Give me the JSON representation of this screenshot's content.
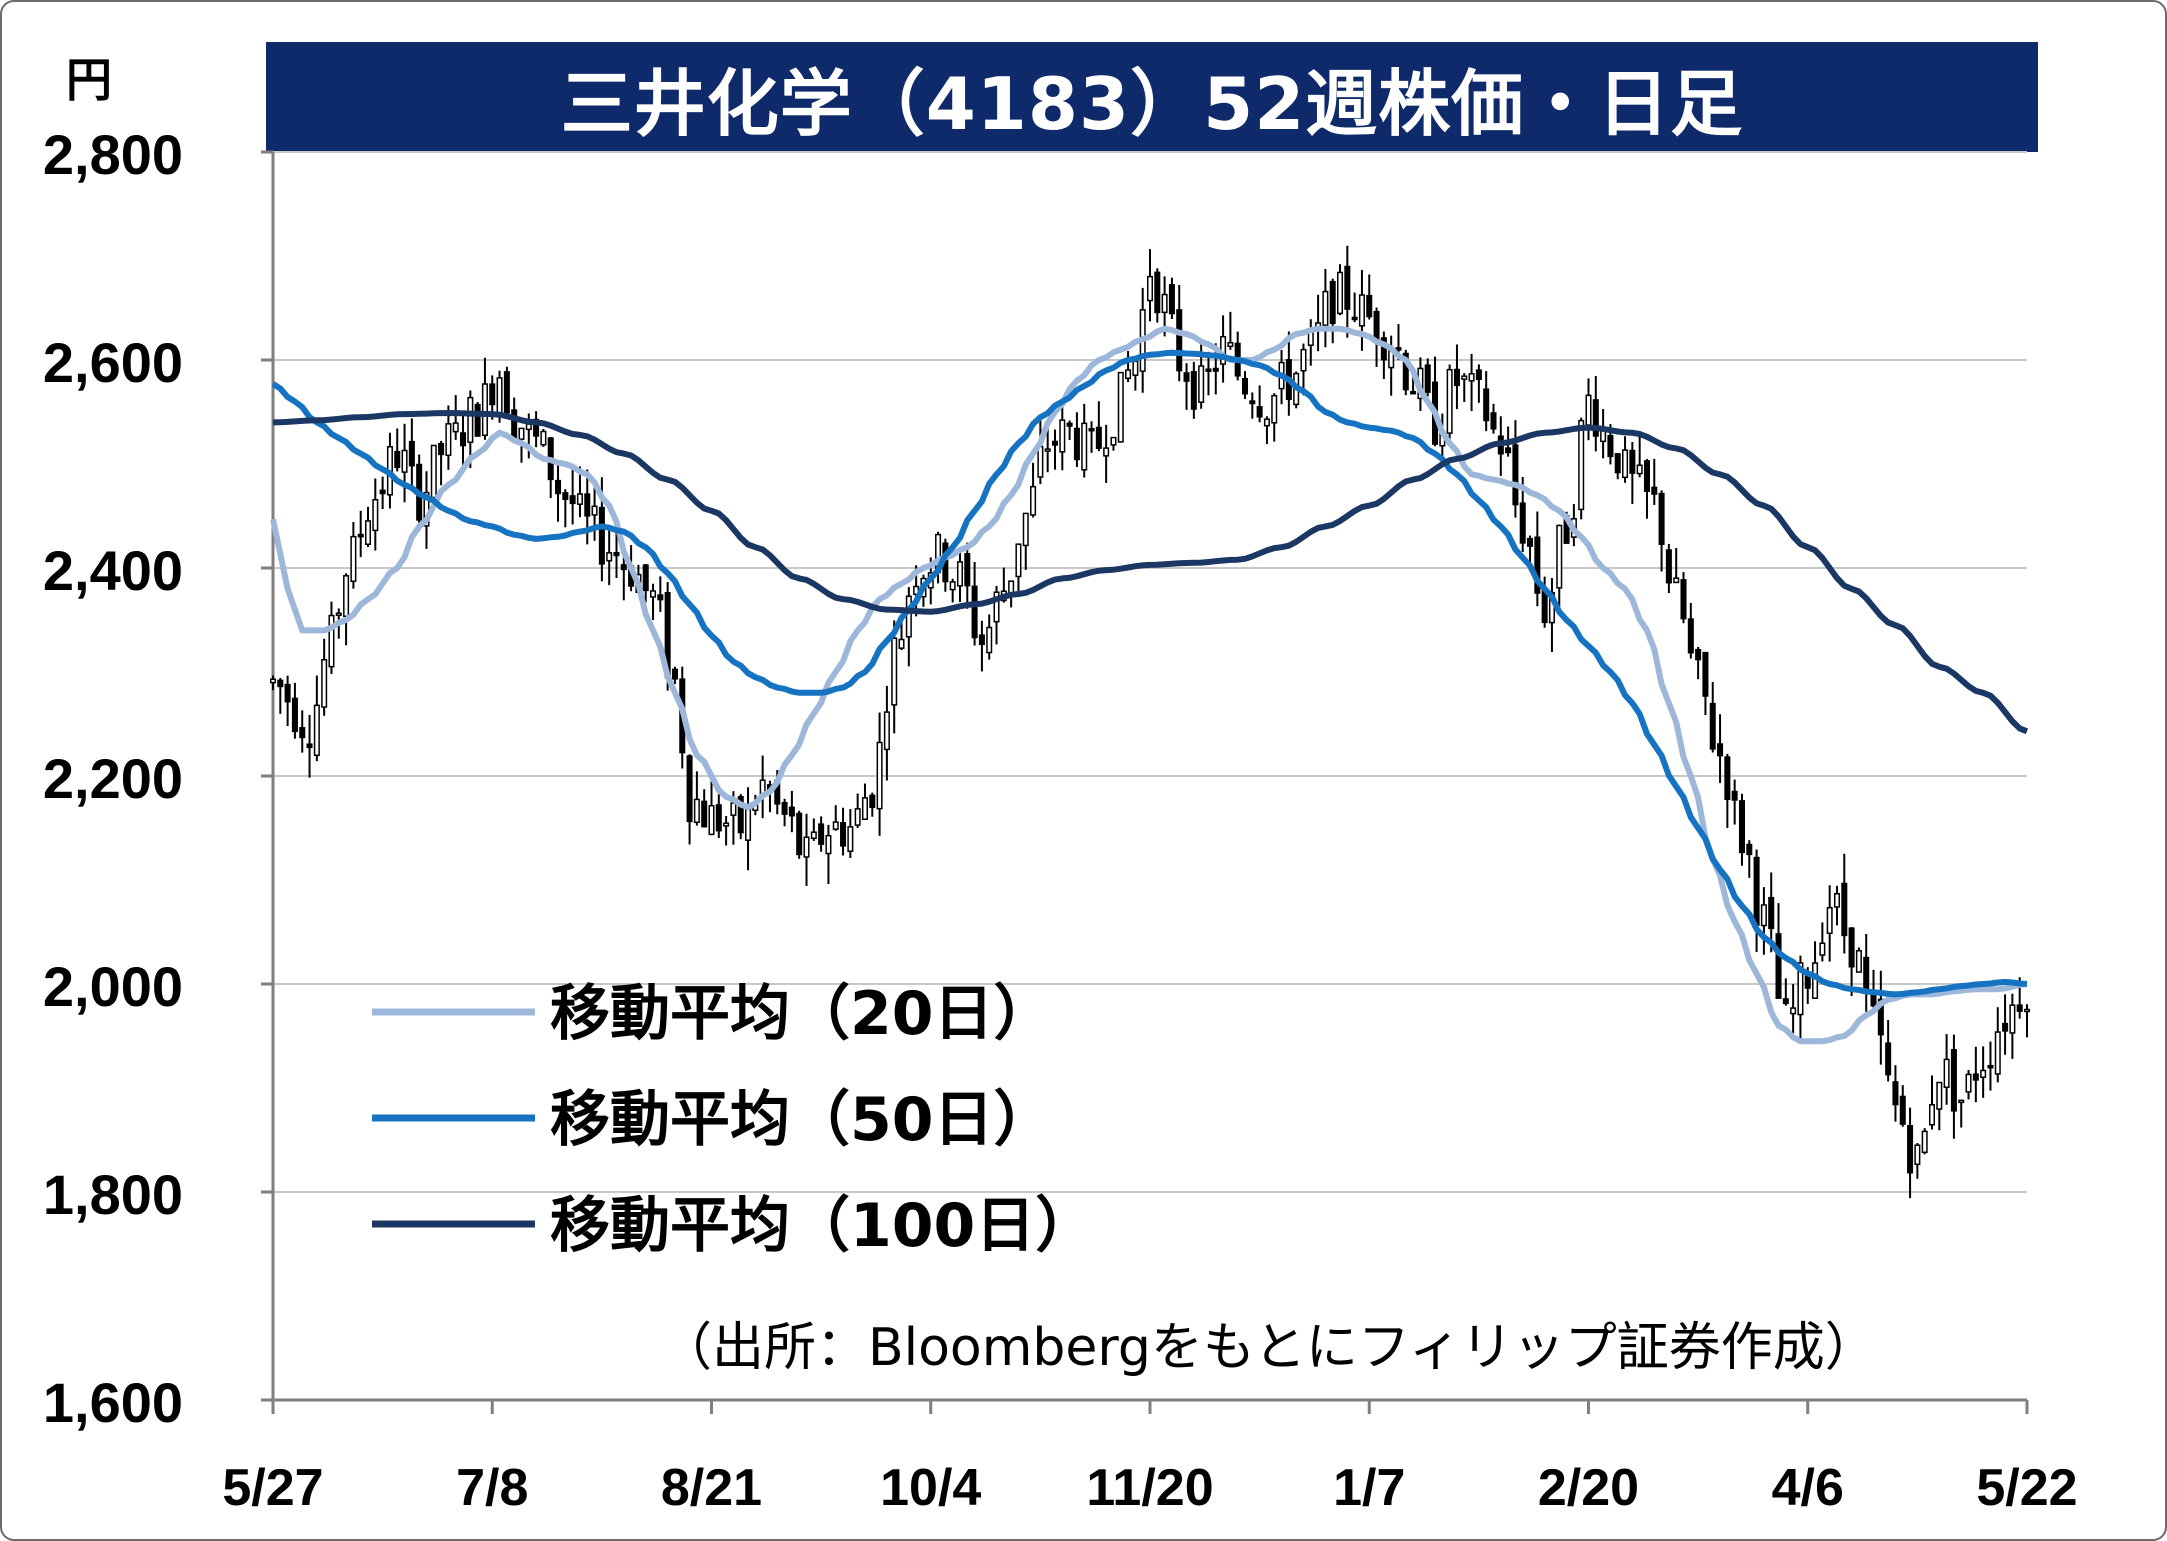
{
  "chart_data": {
    "type": "candlestick",
    "title": "三井化学（4183）52週株価・日足",
    "unit": "円",
    "source": "（出所：Bloombergをもとにフィリップ証券作成）",
    "ylim": [
      1600,
      2800
    ],
    "yticks": [
      "1,600",
      "1,800",
      "2,000",
      "2,200",
      "2,400",
      "2,600",
      "2,800"
    ],
    "ytick_values": [
      1600,
      1800,
      2000,
      2200,
      2400,
      2600,
      2800
    ],
    "xticks": [
      "5/27",
      "7/8",
      "8/21",
      "10/4",
      "11/20",
      "1/7",
      "2/20",
      "4/6",
      "5/22"
    ],
    "xtick_index": [
      0,
      30,
      60,
      90,
      120,
      150,
      180,
      210,
      240
    ],
    "n_days": 241,
    "grid": true,
    "legend_placement": "bottom-left",
    "colors": {
      "ma20": "#9db7da",
      "ma50": "#1673c2",
      "ma100": "#1b3763",
      "grid": "#c8c8c8",
      "axis": "#7f7f7f",
      "title_bg": "#0e2a6b"
    },
    "price_anchors": [
      [
        0,
        2290
      ],
      [
        5,
        2250
      ],
      [
        8,
        2330
      ],
      [
        10,
        2400
      ],
      [
        14,
        2470
      ],
      [
        17,
        2510
      ],
      [
        20,
        2470
      ],
      [
        24,
        2520
      ],
      [
        28,
        2550
      ],
      [
        31,
        2590
      ],
      [
        33,
        2545
      ],
      [
        36,
        2520
      ],
      [
        40,
        2470
      ],
      [
        43,
        2440
      ],
      [
        46,
        2420
      ],
      [
        49,
        2400
      ],
      [
        52,
        2370
      ],
      [
        55,
        2290
      ],
      [
        57,
        2180
      ],
      [
        60,
        2160
      ],
      [
        64,
        2150
      ],
      [
        67,
        2190
      ],
      [
        70,
        2160
      ],
      [
        73,
        2120
      ],
      [
        76,
        2150
      ],
      [
        79,
        2150
      ],
      [
        82,
        2190
      ],
      [
        85,
        2320
      ],
      [
        88,
        2400
      ],
      [
        91,
        2410
      ],
      [
        94,
        2390
      ],
      [
        97,
        2330
      ],
      [
        100,
        2380
      ],
      [
        103,
        2450
      ],
      [
        106,
        2520
      ],
      [
        109,
        2530
      ],
      [
        112,
        2510
      ],
      [
        115,
        2550
      ],
      [
        118,
        2600
      ],
      [
        120,
        2690
      ],
      [
        122,
        2650
      ],
      [
        124,
        2600
      ],
      [
        127,
        2570
      ],
      [
        130,
        2610
      ],
      [
        133,
        2580
      ],
      [
        136,
        2560
      ],
      [
        139,
        2580
      ],
      [
        142,
        2610
      ],
      [
        145,
        2660
      ],
      [
        147,
        2660
      ],
      [
        150,
        2640
      ],
      [
        153,
        2620
      ],
      [
        156,
        2580
      ],
      [
        159,
        2540
      ],
      [
        162,
        2580
      ],
      [
        165,
        2560
      ],
      [
        168,
        2520
      ],
      [
        171,
        2440
      ],
      [
        174,
        2360
      ],
      [
        177,
        2440
      ],
      [
        180,
        2560
      ],
      [
        183,
        2520
      ],
      [
        186,
        2480
      ],
      [
        189,
        2460
      ],
      [
        192,
        2370
      ],
      [
        195,
        2290
      ],
      [
        198,
        2220
      ],
      [
        201,
        2140
      ],
      [
        204,
        2060
      ],
      [
        207,
        1960
      ],
      [
        210,
        2010
      ],
      [
        213,
        2080
      ],
      [
        216,
        2040
      ],
      [
        219,
        1960
      ],
      [
        222,
        1880
      ],
      [
        225,
        1830
      ],
      [
        228,
        1920
      ],
      [
        231,
        1890
      ],
      [
        234,
        1930
      ],
      [
        237,
        1970
      ],
      [
        240,
        2000
      ]
    ],
    "ma_anchors": {
      "ma20": [
        [
          0,
          2447
        ],
        [
          2,
          2380
        ],
        [
          4,
          2340
        ],
        [
          7,
          2340
        ],
        [
          10,
          2350
        ],
        [
          13,
          2370
        ],
        [
          17,
          2400
        ],
        [
          20,
          2440
        ],
        [
          24,
          2480
        ],
        [
          28,
          2510
        ],
        [
          31,
          2530
        ],
        [
          34,
          2520
        ],
        [
          37,
          2505
        ],
        [
          40,
          2500
        ],
        [
          43,
          2490
        ],
        [
          46,
          2460
        ],
        [
          49,
          2400
        ],
        [
          52,
          2340
        ],
        [
          55,
          2280
        ],
        [
          58,
          2220
        ],
        [
          62,
          2180
        ],
        [
          65,
          2170
        ],
        [
          68,
          2185
        ],
        [
          71,
          2220
        ],
        [
          74,
          2260
        ],
        [
          77,
          2300
        ],
        [
          80,
          2340
        ],
        [
          83,
          2370
        ],
        [
          86,
          2385
        ],
        [
          89,
          2400
        ],
        [
          92,
          2410
        ],
        [
          95,
          2420
        ],
        [
          98,
          2440
        ],
        [
          101,
          2470
        ],
        [
          104,
          2510
        ],
        [
          107,
          2550
        ],
        [
          110,
          2580
        ],
        [
          113,
          2600
        ],
        [
          116,
          2610
        ],
        [
          119,
          2620
        ],
        [
          122,
          2630
        ],
        [
          125,
          2625
        ],
        [
          128,
          2615
        ],
        [
          131,
          2600
        ],
        [
          134,
          2600
        ],
        [
          137,
          2610
        ],
        [
          140,
          2625
        ],
        [
          143,
          2630
        ],
        [
          146,
          2630
        ],
        [
          149,
          2625
        ],
        [
          152,
          2615
        ],
        [
          155,
          2600
        ],
        [
          158,
          2560
        ],
        [
          161,
          2520
        ],
        [
          164,
          2490
        ],
        [
          167,
          2485
        ],
        [
          170,
          2480
        ],
        [
          173,
          2470
        ],
        [
          176,
          2455
        ],
        [
          179,
          2430
        ],
        [
          182,
          2400
        ],
        [
          185,
          2380
        ],
        [
          188,
          2340
        ],
        [
          191,
          2270
        ],
        [
          194,
          2200
        ],
        [
          197,
          2120
        ],
        [
          200,
          2060
        ],
        [
          203,
          2010
        ],
        [
          206,
          1960
        ],
        [
          209,
          1945
        ],
        [
          212,
          1945
        ],
        [
          215,
          1950
        ],
        [
          218,
          1970
        ],
        [
          221,
          1985
        ],
        [
          224,
          1990
        ],
        [
          227,
          1990
        ],
        [
          230,
          1993
        ],
        [
          233,
          1995
        ],
        [
          236,
          1995
        ],
        [
          240,
          2000
        ]
      ],
      "ma50": [
        [
          0,
          2577
        ],
        [
          3,
          2560
        ],
        [
          6,
          2540
        ],
        [
          9,
          2525
        ],
        [
          12,
          2510
        ],
        [
          15,
          2495
        ],
        [
          18,
          2480
        ],
        [
          21,
          2468
        ],
        [
          24,
          2455
        ],
        [
          27,
          2445
        ],
        [
          30,
          2440
        ],
        [
          33,
          2432
        ],
        [
          36,
          2428
        ],
        [
          39,
          2430
        ],
        [
          42,
          2435
        ],
        [
          45,
          2440
        ],
        [
          48,
          2435
        ],
        [
          51,
          2420
        ],
        [
          54,
          2395
        ],
        [
          57,
          2365
        ],
        [
          60,
          2335
        ],
        [
          63,
          2310
        ],
        [
          66,
          2295
        ],
        [
          69,
          2285
        ],
        [
          72,
          2280
        ],
        [
          75,
          2280
        ],
        [
          78,
          2285
        ],
        [
          81,
          2300
        ],
        [
          84,
          2330
        ],
        [
          87,
          2360
        ],
        [
          90,
          2390
        ],
        [
          93,
          2420
        ],
        [
          96,
          2455
        ],
        [
          99,
          2490
        ],
        [
          102,
          2520
        ],
        [
          105,
          2545
        ],
        [
          108,
          2560
        ],
        [
          111,
          2575
        ],
        [
          114,
          2590
        ],
        [
          117,
          2600
        ],
        [
          120,
          2605
        ],
        [
          123,
          2607
        ],
        [
          126,
          2606
        ],
        [
          129,
          2604
        ],
        [
          132,
          2600
        ],
        [
          135,
          2595
        ],
        [
          138,
          2585
        ],
        [
          141,
          2570
        ],
        [
          144,
          2550
        ],
        [
          147,
          2540
        ],
        [
          150,
          2535
        ],
        [
          153,
          2532
        ],
        [
          156,
          2525
        ],
        [
          159,
          2510
        ],
        [
          162,
          2490
        ],
        [
          165,
          2465
        ],
        [
          168,
          2440
        ],
        [
          171,
          2410
        ],
        [
          174,
          2380
        ],
        [
          177,
          2350
        ],
        [
          180,
          2325
        ],
        [
          183,
          2300
        ],
        [
          186,
          2270
        ],
        [
          189,
          2230
        ],
        [
          192,
          2190
        ],
        [
          195,
          2150
        ],
        [
          198,
          2110
        ],
        [
          201,
          2075
        ],
        [
          204,
          2045
        ],
        [
          207,
          2025
        ],
        [
          210,
          2010
        ],
        [
          213,
          2000
        ],
        [
          216,
          1995
        ],
        [
          219,
          1992
        ],
        [
          222,
          1990
        ],
        [
          225,
          1992
        ],
        [
          228,
          1995
        ],
        [
          231,
          1998
        ],
        [
          234,
          2000
        ],
        [
          237,
          2002
        ],
        [
          240,
          2000
        ]
      ],
      "ma100": [
        [
          0,
          2540
        ],
        [
          6,
          2542
        ],
        [
          12,
          2545
        ],
        [
          18,
          2548
        ],
        [
          24,
          2549
        ],
        [
          30,
          2548
        ],
        [
          36,
          2540
        ],
        [
          42,
          2528
        ],
        [
          48,
          2510
        ],
        [
          54,
          2485
        ],
        [
          60,
          2455
        ],
        [
          66,
          2420
        ],
        [
          72,
          2390
        ],
        [
          78,
          2370
        ],
        [
          84,
          2360
        ],
        [
          90,
          2358
        ],
        [
          96,
          2365
        ],
        [
          102,
          2375
        ],
        [
          108,
          2390
        ],
        [
          114,
          2398
        ],
        [
          120,
          2403
        ],
        [
          126,
          2405
        ],
        [
          132,
          2408
        ],
        [
          138,
          2420
        ],
        [
          144,
          2440
        ],
        [
          150,
          2460
        ],
        [
          156,
          2485
        ],
        [
          162,
          2505
        ],
        [
          168,
          2520
        ],
        [
          174,
          2530
        ],
        [
          180,
          2535
        ],
        [
          186,
          2530
        ],
        [
          192,
          2515
        ],
        [
          198,
          2490
        ],
        [
          204,
          2460
        ],
        [
          210,
          2420
        ],
        [
          216,
          2380
        ],
        [
          222,
          2345
        ],
        [
          228,
          2305
        ],
        [
          234,
          2280
        ],
        [
          240,
          2243
        ]
      ]
    },
    "legend": [
      {
        "key": "ma20",
        "label": "移動平均（20日）"
      },
      {
        "key": "ma50",
        "label": "移動平均（50日）"
      },
      {
        "key": "ma100",
        "label": "移動平均（100日）"
      }
    ]
  }
}
